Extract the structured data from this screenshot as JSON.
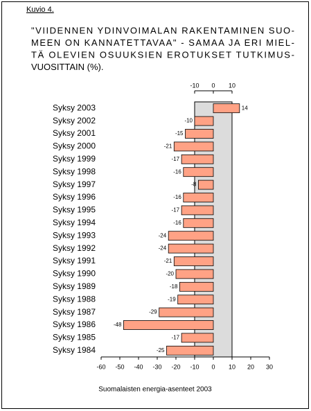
{
  "chart_data": {
    "type": "hbar",
    "label": "Kuvio 4.",
    "title": [
      "\"VIIDENNEN YDINVOIMALAN RAKENTAMINEN SUO-",
      "MEEN ON KANNATETTAVAA\" - SAMAA JA ERI MIEL-",
      "TÄ OLEVIEN OSUUKSIEN EROTUKSET TUTKIMUS-",
      "VUOSITTAIN (%)."
    ],
    "source": "Suomalaisten energia-asenteet 2003",
    "categories": [
      "Syksy 2003",
      "Syksy 2002",
      "Syksy 2001",
      "Syksy 2000",
      "Syksy 1999",
      "Syksy 1998",
      "Syksy 1997",
      "Syksy 1996",
      "Syksy 1995",
      "Syksy 1994",
      "Syksy 1993",
      "Syksy 1992",
      "Syksy 1991",
      "Syksy 1990",
      "Syksy 1989",
      "Syksy 1988",
      "Syksy 1987",
      "Syksy 1986",
      "Syksy 1985",
      "Syksy 1984"
    ],
    "values": [
      14,
      -10,
      -15,
      -21,
      -17,
      -16,
      -8,
      -16,
      -17,
      -16,
      -24,
      -24,
      -21,
      -20,
      -18,
      -19,
      -29,
      -48,
      -17,
      -25
    ],
    "color": "#ffa285",
    "xlim": [
      -60,
      30
    ],
    "xticks": [
      -60,
      -50,
      -40,
      -30,
      -20,
      -10,
      0,
      10,
      20,
      30
    ],
    "top_xticks": [
      -10,
      0,
      10
    ],
    "highlight_band": [
      -10,
      10
    ],
    "band_color": "#dcdcdc"
  }
}
